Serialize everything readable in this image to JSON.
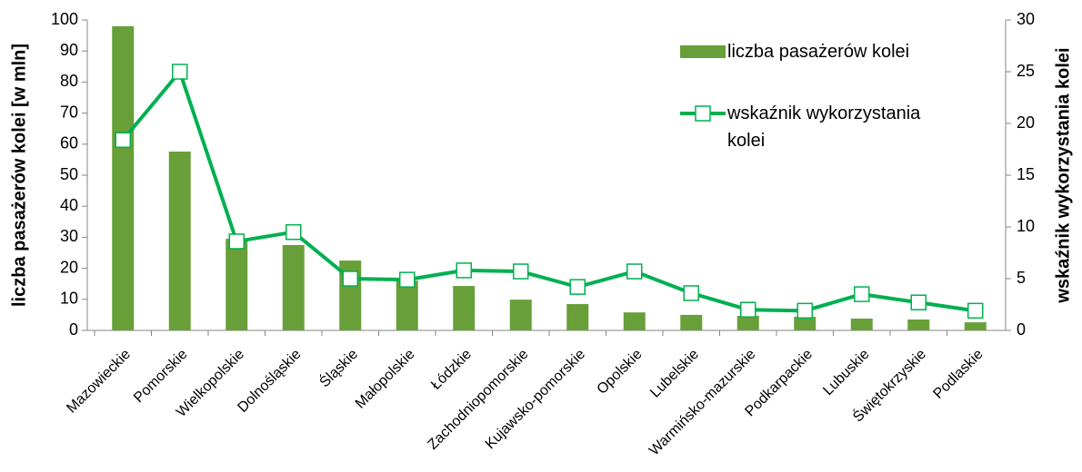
{
  "chart_data": {
    "type": "bar_line",
    "categories": [
      "Mazowieckie",
      "Pomorskie",
      "Wielkopolskie",
      "Dolnośląskie",
      "Śląskie",
      "Małopolskie",
      "Łódzkie",
      "Zachodniopomorskie",
      "Kujawsko-pomorskie",
      "Opolskie",
      "Lubelskie",
      "Warmińsko-mazurskie",
      "Podkarpackie",
      "Lubuskie",
      "Świętokrzyskie",
      "Podlaskie"
    ],
    "series": [
      {
        "name": "liczba pasażerów kolei",
        "type": "bar",
        "color": "#689f38",
        "axis": "y",
        "values": [
          98,
          57.6,
          29.5,
          27.5,
          22.5,
          16,
          14.3,
          9.9,
          8.5,
          5.8,
          5,
          4.7,
          4.4,
          3.8,
          3.5,
          2.6
        ]
      },
      {
        "name": "wskaźnik wykorzystania kolei",
        "type": "line",
        "color": "#00b050",
        "axis": "y2",
        "values": [
          18.4,
          25,
          8.6,
          9.5,
          5.0,
          4.9,
          5.8,
          5.7,
          4.2,
          5.7,
          3.6,
          2.0,
          1.9,
          3.5,
          2.7,
          1.9
        ]
      }
    ],
    "ylabel": "liczba pasażerów kolei [w mln]",
    "y2label": "wskaźnik wykorzystania kolei",
    "ylim": [
      0,
      100
    ],
    "yticks": [
      0,
      10,
      20,
      30,
      40,
      50,
      60,
      70,
      80,
      90,
      100
    ],
    "y2lim": [
      0,
      30
    ],
    "y2ticks": [
      0,
      5,
      10,
      15,
      20,
      25,
      30
    ],
    "legend": "upper right"
  }
}
